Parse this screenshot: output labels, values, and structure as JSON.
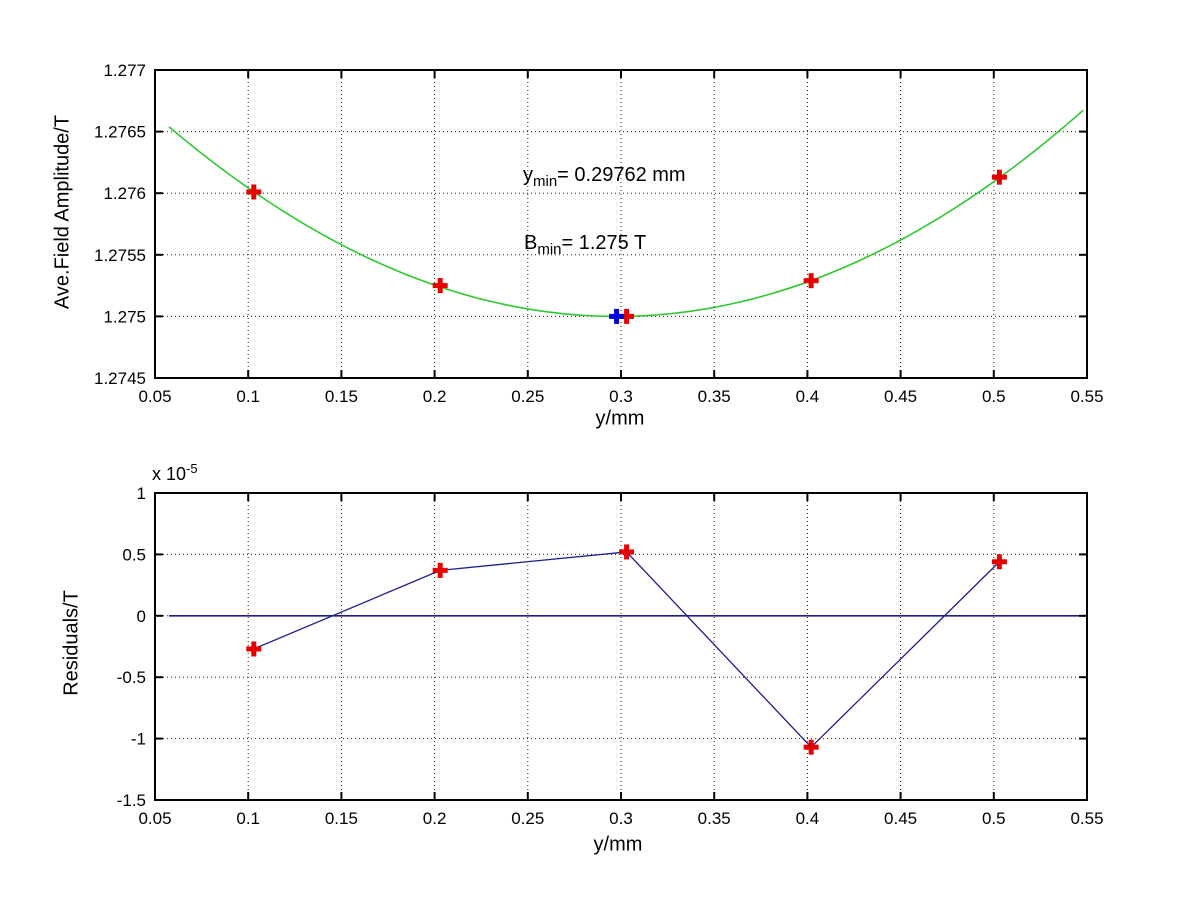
{
  "figure": {
    "background": "#ffffff",
    "frame_color": "#000000",
    "grid_color": "#222222"
  },
  "chart_data": [
    {
      "id": "field_amplitude",
      "type": "scatter",
      "title": "",
      "xlabel": "y/mm",
      "ylabel": "Ave.Field Amplitude/T",
      "xlim": [
        0.05,
        0.55
      ],
      "ylim": [
        1.2745,
        1.277
      ],
      "xticks": [
        0.05,
        0.1,
        0.15,
        0.2,
        0.25,
        0.3,
        0.35,
        0.4,
        0.45,
        0.5,
        0.55
      ],
      "xtick_labels": [
        "0.05",
        "0.1",
        "0.15",
        "0.2",
        "0.25",
        "0.3",
        "0.35",
        "0.4",
        "0.45",
        "0.5",
        "0.55"
      ],
      "yticks": [
        1.2745,
        1.275,
        1.2755,
        1.276,
        1.2765,
        1.277
      ],
      "ytick_labels": [
        "1.2745",
        "1.275",
        "1.2755",
        "1.276",
        "1.2765",
        "1.277"
      ],
      "grid": true,
      "series": [
        {
          "name": "quadratic-fit-curve",
          "type": "line",
          "color": "#2ec82e",
          "width": 1.6,
          "fit": {
            "a": 0.0267,
            "x_min": 0.29762,
            "y_min": 1.275,
            "from": 0.0575,
            "to": 0.548
          }
        },
        {
          "name": "measured-points",
          "type": "scatter",
          "marker": "plus",
          "color": "#e60000",
          "size": 15,
          "stroke_width": 5,
          "points": [
            [
              0.103,
              1.27601
            ],
            [
              0.203,
              1.27525
            ],
            [
              0.303,
              1.275
            ],
            [
              0.402,
              1.27529
            ],
            [
              0.503,
              1.27613
            ]
          ]
        },
        {
          "name": "fitted-minimum-point",
          "type": "scatter",
          "marker": "plus",
          "color": "#0000e0",
          "size": 15,
          "stroke_width": 5,
          "points": [
            [
              0.29762,
              1.275
            ]
          ]
        }
      ],
      "annotations": [
        {
          "base": "y",
          "sub": "min",
          "rest": "= 0.29762 mm"
        },
        {
          "base": "B",
          "sub": "min",
          "rest": "= 1.275 T"
        }
      ]
    },
    {
      "id": "residuals",
      "type": "line",
      "title": "",
      "xlabel": "y/mm",
      "ylabel": "Residuals/T",
      "y_unit_exponent": -5,
      "exponent_label": {
        "base": "x 10",
        "sup": "-5"
      },
      "xlim": [
        0.05,
        0.55
      ],
      "ylim": [
        -1.5,
        1
      ],
      "xticks": [
        0.05,
        0.1,
        0.15,
        0.2,
        0.25,
        0.3,
        0.35,
        0.4,
        0.45,
        0.5,
        0.55
      ],
      "xtick_labels": [
        "0.05",
        "0.1",
        "0.15",
        "0.2",
        "0.25",
        "0.3",
        "0.35",
        "0.4",
        "0.45",
        "0.5",
        "0.55"
      ],
      "yticks": [
        -1.5,
        -1,
        -0.5,
        0,
        0.5,
        1
      ],
      "ytick_labels": [
        "-1.5",
        "-1",
        "-0.5",
        "0",
        "0.5",
        "1"
      ],
      "grid": true,
      "series": [
        {
          "name": "zero-reference-line",
          "type": "line",
          "color": "#1c1c8f",
          "width": 1.6,
          "points": [
            [
              0.0575,
              0
            ],
            [
              0.55,
              0
            ]
          ]
        },
        {
          "name": "residuals-line",
          "type": "line",
          "color": "#1c1c8f",
          "width": 1.3,
          "points": [
            [
              0.103,
              -0.27
            ],
            [
              0.203,
              0.37
            ],
            [
              0.303,
              0.52
            ],
            [
              0.402,
              -1.07
            ],
            [
              0.503,
              0.44
            ]
          ]
        },
        {
          "name": "residual-points",
          "type": "scatter",
          "marker": "plus",
          "color": "#e60000",
          "size": 15,
          "stroke_width": 5,
          "points": [
            [
              0.103,
              -0.27
            ],
            [
              0.203,
              0.37
            ],
            [
              0.303,
              0.52
            ],
            [
              0.402,
              -1.07
            ],
            [
              0.503,
              0.44
            ]
          ]
        }
      ]
    }
  ]
}
